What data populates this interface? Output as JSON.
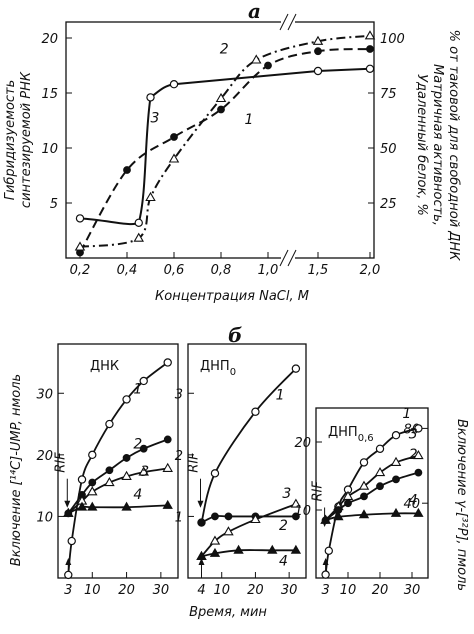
{
  "chart_data": [
    {
      "type": "line",
      "panel_label": "а",
      "xlabel": "Концентрация NaCl, M",
      "ylabel_left": [
        "Гибридизуемость",
        "синтезируемой РНК"
      ],
      "ylabel_right": [
        "Удаленный белок, %",
        "Матричная активность,",
        "% от таковой для свободной ДНК"
      ],
      "x_ticks": [
        "0,2",
        "0,4",
        "0,6",
        "0,8",
        "1,0",
        "1,5",
        "2,0"
      ],
      "y_left_ticks": [
        "5",
        "10",
        "15",
        "20"
      ],
      "y_right_ticks": [
        "25",
        "50",
        "75",
        "100"
      ],
      "x_axis_break": true,
      "series": [
        {
          "name": "1",
          "marker": "filled-circle",
          "line": "dashed",
          "x": [
            0.2,
            0.4,
            0.6,
            0.8,
            1.0,
            1.5,
            2.0
          ],
          "y_left": [
            0.5,
            8.0,
            11.0,
            13.5,
            17.5,
            18.8,
            19.0
          ]
        },
        {
          "name": "2",
          "marker": "open-triangle",
          "line": "dash-dot",
          "x": [
            0.2,
            0.45,
            0.5,
            0.6,
            0.8,
            0.95,
            1.5,
            2.0
          ],
          "y_left": [
            1.0,
            1.8,
            5.5,
            9.0,
            14.5,
            18.0,
            19.7,
            20.2
          ]
        },
        {
          "name": "3",
          "marker": "open-circle",
          "line": "solid",
          "x": [
            0.2,
            0.45,
            0.5,
            0.6,
            1.5,
            2.0
          ],
          "y_left": [
            3.6,
            3.2,
            14.6,
            15.8,
            17.0,
            17.2
          ]
        }
      ]
    },
    {
      "type": "line",
      "panel_label": "б",
      "xlabel": "Время, мин",
      "ylabel_left": "Включение [¹⁴C]-UMP, нмоль",
      "ylabel_right": "Включение γ-[³²P], пмоль",
      "subplots": [
        {
          "title": "ДНК",
          "x_ticks": [
            "3",
            "10",
            "20",
            "30"
          ],
          "y_ticks": [
            "10",
            "20",
            "30"
          ],
          "annotation": "RIF",
          "series": [
            {
              "name": "1",
              "marker": "open-circle",
              "x": [
                3,
                4,
                7,
                10,
                15,
                20,
                25,
                32
              ],
              "y": [
                0.5,
                6,
                16,
                20,
                25,
                29,
                32,
                35
              ]
            },
            {
              "name": "2",
              "marker": "filled-circle",
              "x": [
                3,
                7,
                10,
                15,
                20,
                25,
                32
              ],
              "y": [
                10.5,
                13.5,
                15.5,
                17.5,
                19.5,
                21,
                22.5
              ]
            },
            {
              "name": "3",
              "marker": "open-triangle",
              "x": [
                3,
                7,
                10,
                15,
                20,
                25,
                32
              ],
              "y": [
                10.5,
                12.5,
                14,
                15.5,
                16.5,
                17.2,
                17.8
              ]
            },
            {
              "name": "4",
              "marker": "filled-triangle",
              "x": [
                3,
                7,
                10,
                20,
                32
              ],
              "y": [
                10.5,
                11.5,
                11.5,
                11.5,
                11.8
              ]
            }
          ]
        },
        {
          "title": "ДНП",
          "title_sub": "0",
          "x_ticks": [
            "4",
            "10",
            "20",
            "30"
          ],
          "y_ticks": [
            "1",
            "2",
            "3"
          ],
          "annotation": "RIF",
          "series": [
            {
              "name": "1",
              "marker": "open-circle",
              "x": [
                4,
                8,
                20,
                32
              ],
              "y": [
                0.9,
                1.7,
                2.7,
                3.4
              ]
            },
            {
              "name": "2",
              "marker": "filled-circle",
              "x": [
                4,
                8,
                12,
                20,
                32
              ],
              "y": [
                0.9,
                1.0,
                1.0,
                1.0,
                1.0
              ]
            },
            {
              "name": "3",
              "marker": "open-triangle",
              "x": [
                4,
                8,
                12,
                20,
                32
              ],
              "y": [
                0.35,
                0.6,
                0.75,
                0.95,
                1.2
              ]
            },
            {
              "name": "4",
              "marker": "filled-triangle",
              "x": [
                4,
                8,
                15,
                25,
                32
              ],
              "y": [
                0.35,
                0.4,
                0.45,
                0.45,
                0.45
              ]
            }
          ]
        },
        {
          "title": "ДНП",
          "title_sub": "0,6",
          "x_ticks": [
            "3",
            "10",
            "20",
            "30"
          ],
          "y_ticks": [
            "10",
            "20"
          ],
          "y_right_ticks": [
            "40",
            "80"
          ],
          "annotation": "RIF",
          "series": [
            {
              "name": "1",
              "marker": "open-circle",
              "x": [
                3,
                4,
                7,
                10,
                15,
                20,
                25,
                32
              ],
              "y": [
                0.5,
                4,
                10.5,
                13,
                17,
                19,
                21,
                22
              ]
            },
            {
              "name": "3",
              "marker": "open-triangle",
              "x": [
                3,
                7,
                10,
                15,
                20,
                25,
                32
              ],
              "y": [
                8.5,
                10.5,
                12,
                13.5,
                15.5,
                17,
                18
              ]
            },
            {
              "name": "2",
              "marker": "filled-circle",
              "x": [
                3,
                7,
                10,
                15,
                20,
                25,
                32
              ],
              "y": [
                8.5,
                10,
                11,
                12,
                13.5,
                14.5,
                15.5
              ]
            },
            {
              "name": "4",
              "marker": "filled-triangle",
              "x": [
                3,
                7,
                15,
                25,
                32
              ],
              "y": [
                8.5,
                9,
                9.3,
                9.5,
                9.5
              ]
            }
          ]
        }
      ]
    }
  ]
}
